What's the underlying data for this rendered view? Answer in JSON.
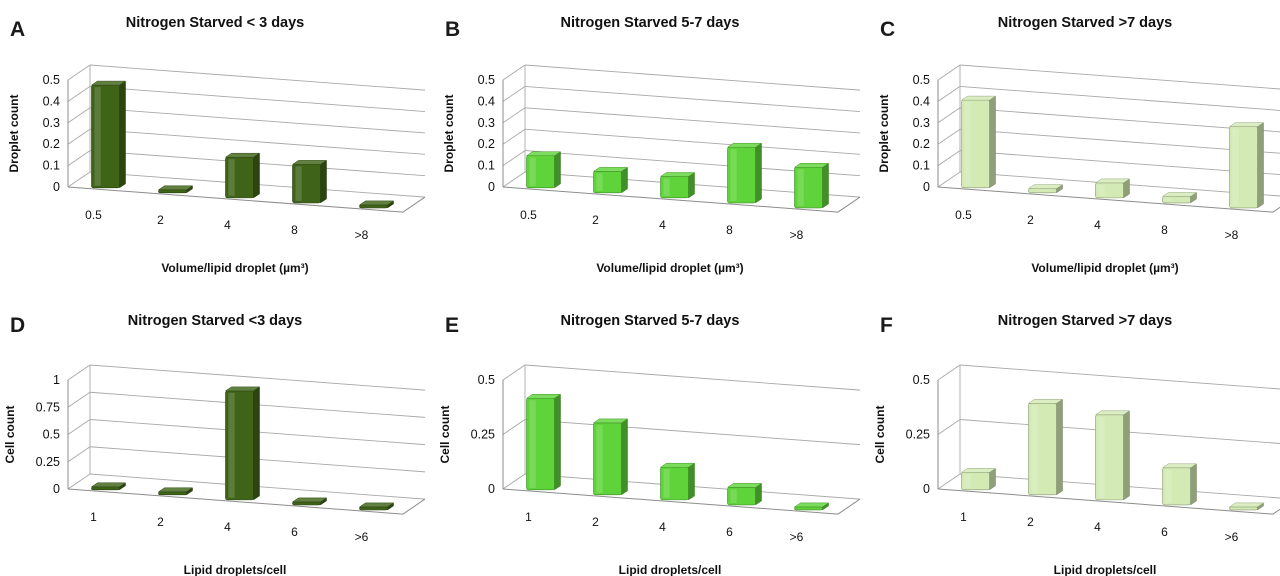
{
  "chart_data": [
    {
      "type": "bar",
      "panel": "A",
      "title": "Nitrogen Starved < 3 days",
      "xlabel": "Volume/lipid droplet (µm³)",
      "ylabel": "Droplet count",
      "categories": [
        "0.5",
        "2",
        "4",
        "8",
        ">8"
      ],
      "values": [
        0.48,
        0.0,
        0.19,
        0.18,
        0.0
      ],
      "ylim": [
        0,
        0.5
      ],
      "yticks": [
        "0",
        "0.1",
        "0.2",
        "0.3",
        "0.4",
        "0.5"
      ],
      "grid": true,
      "color": "#3f6418"
    },
    {
      "type": "bar",
      "panel": "B",
      "title": "Nitrogen Starved 5-7 days",
      "xlabel": "Volume/lipid droplet (µm³)",
      "ylabel": "Droplet count",
      "categories": [
        "0.5",
        "2",
        "4",
        "8",
        ">8"
      ],
      "values": [
        0.15,
        0.1,
        0.1,
        0.26,
        0.19
      ],
      "ylim": [
        0,
        0.5
      ],
      "yticks": [
        "0",
        "0.1",
        "0.2",
        "0.3",
        "0.4",
        "0.5"
      ],
      "grid": true,
      "color": "#5fd43a"
    },
    {
      "type": "bar",
      "panel": "C",
      "title": "Nitrogen Starved >7 days",
      "xlabel": "Volume/lipid droplet (µm³)",
      "ylabel": "Droplet count",
      "categories": [
        "0.5",
        "2",
        "4",
        "8",
        ">8"
      ],
      "values": [
        0.41,
        0.02,
        0.07,
        0.03,
        0.38
      ],
      "ylim": [
        0,
        0.5
      ],
      "yticks": [
        "0",
        "0.1",
        "0.2",
        "0.3",
        "0.4",
        "0.5"
      ],
      "grid": true,
      "color": "#d3eab4"
    },
    {
      "type": "bar",
      "panel": "D",
      "title": "Nitrogen Starved <3 days",
      "xlabel": "Lipid droplets/cell",
      "ylabel": "Cell count",
      "categories": [
        "1",
        "2",
        "4",
        "6",
        ">6"
      ],
      "values": [
        0.0,
        0.0,
        1.0,
        0.0,
        0.0
      ],
      "ylim": [
        0,
        1
      ],
      "yticks": [
        "0",
        "0.25",
        "0.5",
        "0.75",
        "1"
      ],
      "grid": true,
      "color": "#3f6418"
    },
    {
      "type": "bar",
      "panel": "E",
      "title": "Nitrogen Starved 5-7 days",
      "xlabel": "Lipid droplets/cell",
      "ylabel": "Cell count",
      "categories": [
        "1",
        "2",
        "4",
        "6",
        ">6"
      ],
      "values": [
        0.42,
        0.33,
        0.15,
        0.08,
        0.0
      ],
      "ylim": [
        0,
        0.5
      ],
      "yticks": [
        "0",
        "0.25",
        "0.5"
      ],
      "grid": true,
      "color": "#5fd43a"
    },
    {
      "type": "bar",
      "panel": "F",
      "title": "Nitrogen Starved  >7 days",
      "xlabel": "Lipid droplets/cell",
      "ylabel": "Cell count",
      "categories": [
        "1",
        "2",
        "4",
        "6",
        ">6"
      ],
      "values": [
        0.08,
        0.42,
        0.39,
        0.17,
        0.0
      ],
      "ylim": [
        0,
        0.5
      ],
      "yticks": [
        "0",
        "0.25",
        "0.5"
      ],
      "grid": true,
      "color": "#d3eab4"
    }
  ]
}
